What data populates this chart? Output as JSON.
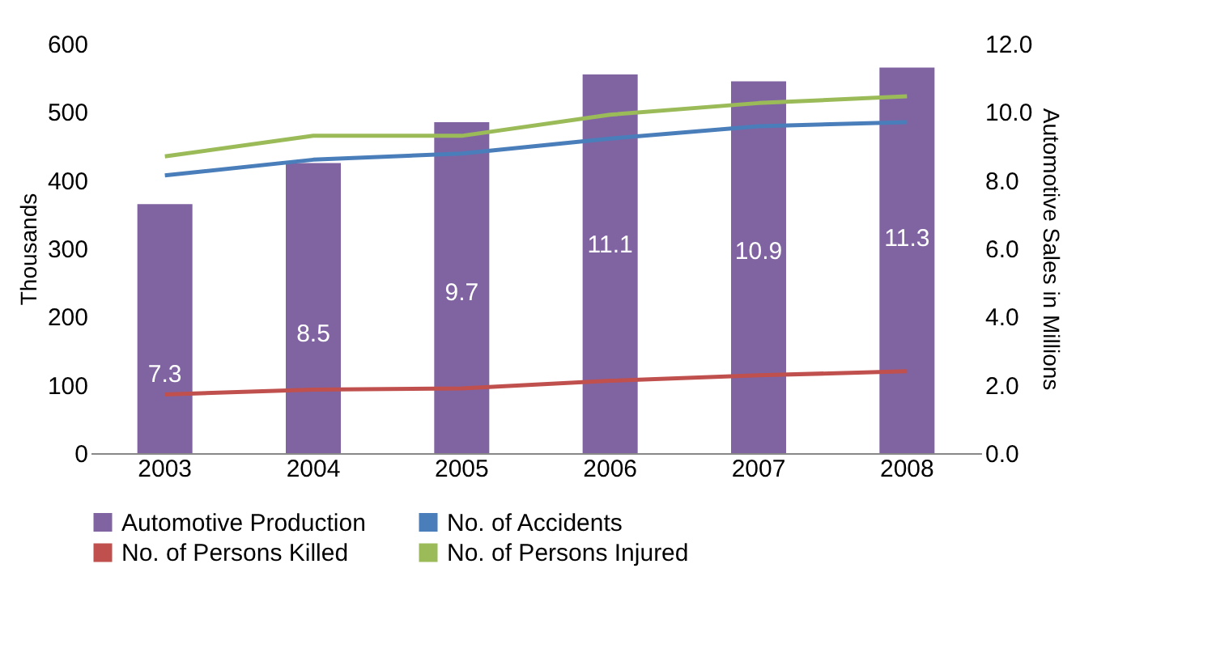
{
  "chart_data": {
    "type": "line",
    "categories": [
      "2003",
      "2004",
      "2005",
      "2006",
      "2007",
      "2008"
    ],
    "ylabel": "Thousands",
    "y2label": "Automotive Sales in Millions",
    "ylim": [
      0,
      600
    ],
    "yticks": [
      0,
      100,
      200,
      300,
      400,
      500,
      600
    ],
    "y2lim": [
      0,
      12
    ],
    "y2ticks": [
      {
        "value": 0,
        "label": "0.0"
      },
      {
        "value": 2,
        "label": "2.0"
      },
      {
        "value": 4,
        "label": "4.0"
      },
      {
        "value": 6,
        "label": "6.0"
      },
      {
        "value": 8,
        "label": "8.0"
      },
      {
        "value": 10,
        "label": "10.0"
      },
      {
        "value": 12,
        "label": "12.0"
      }
    ],
    "grid": false,
    "legend": "bottom",
    "marker": "none",
    "series": [
      {
        "name": "Automotive Production",
        "type": "bar",
        "axis": "y2",
        "color": "#8064a2",
        "values": [
          7.3,
          8.5,
          9.7,
          11.1,
          10.9,
          11.3
        ],
        "data_labels": true
      },
      {
        "name": "No. of Accidents",
        "color": "#4a7ebb",
        "values": [
          407,
          430,
          439,
          461,
          479,
          485
        ]
      },
      {
        "name": "No. of Persons Killed",
        "color": "#c0504d",
        "values": [
          86,
          93,
          95,
          106,
          114,
          120
        ]
      },
      {
        "name": "No. of Persons Injured",
        "color": "#9bbb59",
        "values": [
          435,
          465,
          465,
          496,
          513,
          523
        ]
      }
    ]
  }
}
